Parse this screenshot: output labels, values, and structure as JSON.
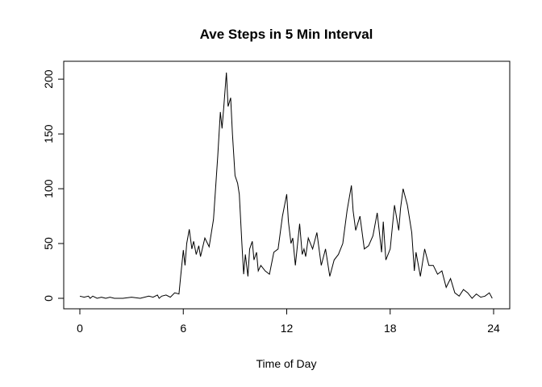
{
  "chart_data": {
    "type": "line",
    "title": "Ave Steps in 5 Min Interval",
    "xlabel": "Time of Day",
    "ylabel": "",
    "xlim": [
      0,
      24
    ],
    "ylim": [
      0,
      206
    ],
    "x_ticks": [
      0,
      6,
      12,
      18,
      24
    ],
    "y_ticks": [
      0,
      50,
      100,
      150,
      200
    ],
    "grid": false,
    "line_color": "#000000",
    "series": [
      {
        "x": [
          0,
          0.25,
          0.5,
          0.6,
          0.75,
          1.0,
          1.25,
          1.5,
          1.75,
          2.0,
          2.5,
          3.0,
          3.5,
          4.0,
          4.25,
          4.5,
          4.6,
          4.75,
          5.0,
          5.25,
          5.5,
          5.75,
          5.85,
          6.0,
          6.1,
          6.2,
          6.35,
          6.5,
          6.6,
          6.75,
          6.9,
          7.0,
          7.25,
          7.5,
          7.75,
          8.0,
          8.15,
          8.25,
          8.35,
          8.5,
          8.6,
          8.75,
          8.85,
          9.0,
          9.15,
          9.25,
          9.4,
          9.5,
          9.6,
          9.75,
          9.85,
          10.0,
          10.1,
          10.25,
          10.35,
          10.5,
          10.75,
          11.0,
          11.25,
          11.5,
          11.75,
          12.0,
          12.1,
          12.25,
          12.35,
          12.5,
          12.6,
          12.75,
          12.9,
          13.0,
          13.1,
          13.25,
          13.5,
          13.75,
          14.0,
          14.25,
          14.5,
          14.75,
          15.0,
          15.25,
          15.5,
          15.75,
          15.85,
          16.0,
          16.25,
          16.5,
          16.75,
          17.0,
          17.25,
          17.5,
          17.6,
          17.75,
          18.0,
          18.25,
          18.5,
          18.6,
          18.75,
          19.0,
          19.25,
          19.4,
          19.5,
          19.75,
          20.0,
          20.25,
          20.5,
          20.75,
          21.0,
          21.25,
          21.5,
          21.75,
          22.0,
          22.25,
          22.5,
          22.75,
          23.0,
          23.25,
          23.5,
          23.75,
          23.92
        ],
        "y": [
          2,
          1,
          2,
          0,
          2,
          0,
          1,
          0,
          1,
          0,
          0,
          1,
          0,
          2,
          1,
          3,
          0,
          2,
          3,
          1,
          5,
          4,
          20,
          44,
          30,
          50,
          63,
          45,
          52,
          40,
          48,
          38,
          55,
          47,
          72,
          130,
          170,
          155,
          175,
          206,
          175,
          183,
          150,
          112,
          105,
          95,
          50,
          22,
          40,
          20,
          45,
          52,
          35,
          42,
          25,
          30,
          25,
          22,
          42,
          45,
          75,
          95,
          70,
          50,
          55,
          30,
          45,
          68,
          40,
          45,
          38,
          55,
          45,
          60,
          30,
          45,
          20,
          35,
          40,
          50,
          80,
          103,
          80,
          62,
          75,
          45,
          48,
          57,
          78,
          42,
          70,
          35,
          45,
          85,
          62,
          82,
          100,
          85,
          60,
          25,
          42,
          20,
          45,
          30,
          30,
          22,
          25,
          10,
          18,
          5,
          2,
          8,
          5,
          0,
          4,
          1,
          2,
          5,
          0
        ]
      }
    ]
  }
}
